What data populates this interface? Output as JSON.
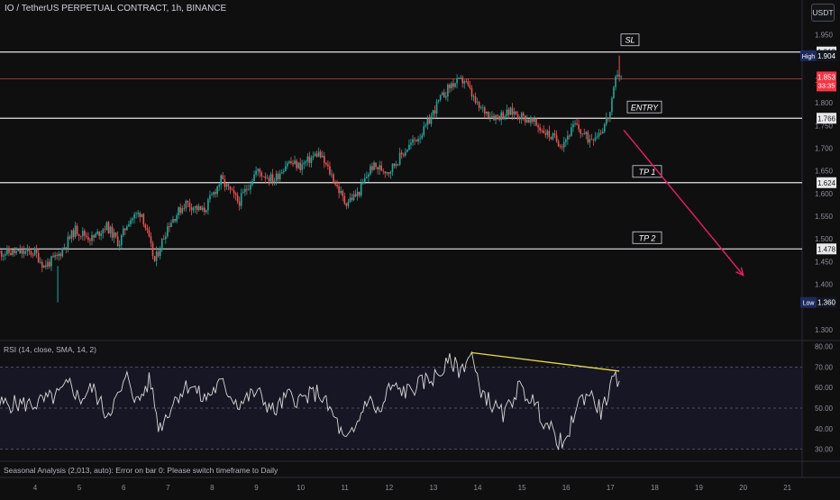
{
  "header": {
    "title": "IO / TetherUS PERPETUAL CONTRACT, 1h, BINANCE",
    "currency": "USDT"
  },
  "rsi_panel": {
    "title": "RSI (14, close, SMA, 14, 2)"
  },
  "footer": {
    "seasonal_text": "Seasonal Analysis (2,013, auto): Error on bar 0: Please switch timeframe to Daily"
  },
  "colors": {
    "background": "#0f0f10",
    "bull": "#26a69a",
    "bear": "#ef5350",
    "level_line": "#e6e6e6",
    "current_price_line": "#b33a3a",
    "arrow": "#e91e63",
    "rsi_line": "#d9d9d9",
    "rsi_divergence": "#e6d84b",
    "rsi_band": "#1c1a2e"
  },
  "chart_data": [
    {
      "type": "candlestick",
      "y_axis_labels": [
        "1.950",
        "1.850",
        "1.800",
        "1.750",
        "1.700",
        "1.650",
        "1.600",
        "1.550",
        "1.500",
        "1.450",
        "1.400",
        "1.300"
      ],
      "x_axis_labels": [
        "4",
        "5",
        "6",
        "7",
        "8",
        "9",
        "10",
        "11",
        "12",
        "13",
        "14",
        "15",
        "16",
        "17",
        "18",
        "19",
        "20",
        "21"
      ],
      "ylim": [
        1.28,
        1.975
      ],
      "price_badges": [
        {
          "label": "",
          "value": "1.912",
          "style": "level"
        },
        {
          "label": "High",
          "value": "1.904",
          "style": "high"
        },
        {
          "label": "",
          "value": "1.853",
          "sub": "33:35",
          "style": "current"
        },
        {
          "label": "",
          "value": "1.766",
          "style": "level"
        },
        {
          "label": "",
          "value": "1.624",
          "style": "level"
        },
        {
          "label": "",
          "value": "1.478",
          "style": "level"
        },
        {
          "label": "Low",
          "value": "1.360",
          "style": "low"
        }
      ],
      "levels": [
        {
          "name": "SL",
          "price": 1.912
        },
        {
          "name": "ENTRY",
          "price": 1.766
        },
        {
          "name": "TP 1",
          "price": 1.624
        },
        {
          "name": "TP 2",
          "price": 1.478
        }
      ],
      "current_price": 1.853,
      "high": 1.904,
      "low": 1.36,
      "price_path": [
        {
          "x": 4.0,
          "y": 1.47
        },
        {
          "x": 4.2,
          "y": 1.44
        },
        {
          "x": 4.5,
          "y": 1.46
        },
        {
          "x": 4.9,
          "y": 1.52
        },
        {
          "x": 5.3,
          "y": 1.5
        },
        {
          "x": 5.6,
          "y": 1.53
        },
        {
          "x": 5.9,
          "y": 1.49
        },
        {
          "x": 6.1,
          "y": 1.54
        },
        {
          "x": 6.4,
          "y": 1.56
        },
        {
          "x": 6.7,
          "y": 1.45
        },
        {
          "x": 7.0,
          "y": 1.53
        },
        {
          "x": 7.4,
          "y": 1.58
        },
        {
          "x": 7.8,
          "y": 1.56
        },
        {
          "x": 8.2,
          "y": 1.63
        },
        {
          "x": 8.6,
          "y": 1.58
        },
        {
          "x": 9.0,
          "y": 1.65
        },
        {
          "x": 9.4,
          "y": 1.63
        },
        {
          "x": 9.7,
          "y": 1.67
        },
        {
          "x": 10.0,
          "y": 1.66
        },
        {
          "x": 10.4,
          "y": 1.69
        },
        {
          "x": 10.7,
          "y": 1.64
        },
        {
          "x": 11.0,
          "y": 1.58
        },
        {
          "x": 11.3,
          "y": 1.6
        },
        {
          "x": 11.6,
          "y": 1.66
        },
        {
          "x": 12.0,
          "y": 1.65
        },
        {
          "x": 12.4,
          "y": 1.7
        },
        {
          "x": 12.8,
          "y": 1.74
        },
        {
          "x": 13.1,
          "y": 1.8
        },
        {
          "x": 13.4,
          "y": 1.84
        },
        {
          "x": 13.7,
          "y": 1.85
        },
        {
          "x": 14.0,
          "y": 1.79
        },
        {
          "x": 14.4,
          "y": 1.77
        },
        {
          "x": 14.8,
          "y": 1.78
        },
        {
          "x": 15.2,
          "y": 1.76
        },
        {
          "x": 15.6,
          "y": 1.73
        },
        {
          "x": 15.9,
          "y": 1.71
        },
        {
          "x": 16.2,
          "y": 1.75
        },
        {
          "x": 16.5,
          "y": 1.72
        },
        {
          "x": 16.8,
          "y": 1.74
        },
        {
          "x": 17.0,
          "y": 1.78
        },
        {
          "x": 17.15,
          "y": 1.87
        },
        {
          "x": 17.25,
          "y": 1.853
        }
      ],
      "projection_arrow": {
        "from": {
          "x": 17.3,
          "y": 1.74
        },
        "to": {
          "x": 20.0,
          "y": 1.42
        }
      }
    },
    {
      "type": "line",
      "name": "RSI",
      "y_axis_labels": [
        "80.00",
        "70.00",
        "60.00",
        "50.00",
        "40.00",
        "30.00"
      ],
      "ylim": [
        25,
        82
      ],
      "reference_lines": [
        70,
        50,
        30
      ],
      "values_path": [
        {
          "x": 4.0,
          "y": 52
        },
        {
          "x": 4.5,
          "y": 56
        },
        {
          "x": 4.8,
          "y": 62
        },
        {
          "x": 5.0,
          "y": 54
        },
        {
          "x": 5.3,
          "y": 60
        },
        {
          "x": 5.6,
          "y": 47
        },
        {
          "x": 5.9,
          "y": 56
        },
        {
          "x": 6.1,
          "y": 66
        },
        {
          "x": 6.3,
          "y": 52
        },
        {
          "x": 6.6,
          "y": 64
        },
        {
          "x": 6.8,
          "y": 40
        },
        {
          "x": 7.2,
          "y": 56
        },
        {
          "x": 7.5,
          "y": 62
        },
        {
          "x": 7.8,
          "y": 54
        },
        {
          "x": 8.2,
          "y": 62
        },
        {
          "x": 8.6,
          "y": 52
        },
        {
          "x": 9.0,
          "y": 58
        },
        {
          "x": 9.4,
          "y": 48
        },
        {
          "x": 9.7,
          "y": 56
        },
        {
          "x": 10.0,
          "y": 54
        },
        {
          "x": 10.4,
          "y": 58
        },
        {
          "x": 10.8,
          "y": 44
        },
        {
          "x": 11.0,
          "y": 33
        },
        {
          "x": 11.2,
          "y": 38
        },
        {
          "x": 11.5,
          "y": 55
        },
        {
          "x": 11.8,
          "y": 47
        },
        {
          "x": 12.0,
          "y": 60
        },
        {
          "x": 12.4,
          "y": 58
        },
        {
          "x": 12.8,
          "y": 63
        },
        {
          "x": 13.1,
          "y": 66
        },
        {
          "x": 13.4,
          "y": 73
        },
        {
          "x": 13.6,
          "y": 68
        },
        {
          "x": 13.85,
          "y": 77
        },
        {
          "x": 14.0,
          "y": 62
        },
        {
          "x": 14.3,
          "y": 52
        },
        {
          "x": 14.6,
          "y": 46
        },
        {
          "x": 14.9,
          "y": 60
        },
        {
          "x": 15.2,
          "y": 55
        },
        {
          "x": 15.5,
          "y": 44
        },
        {
          "x": 15.8,
          "y": 35
        },
        {
          "x": 16.0,
          "y": 31
        },
        {
          "x": 16.2,
          "y": 50
        },
        {
          "x": 16.5,
          "y": 58
        },
        {
          "x": 16.8,
          "y": 48
        },
        {
          "x": 17.0,
          "y": 60
        },
        {
          "x": 17.2,
          "y": 66
        }
      ],
      "divergence_line": {
        "from": {
          "x": 13.85,
          "y": 77
        },
        "to": {
          "x": 17.2,
          "y": 68
        }
      }
    }
  ]
}
